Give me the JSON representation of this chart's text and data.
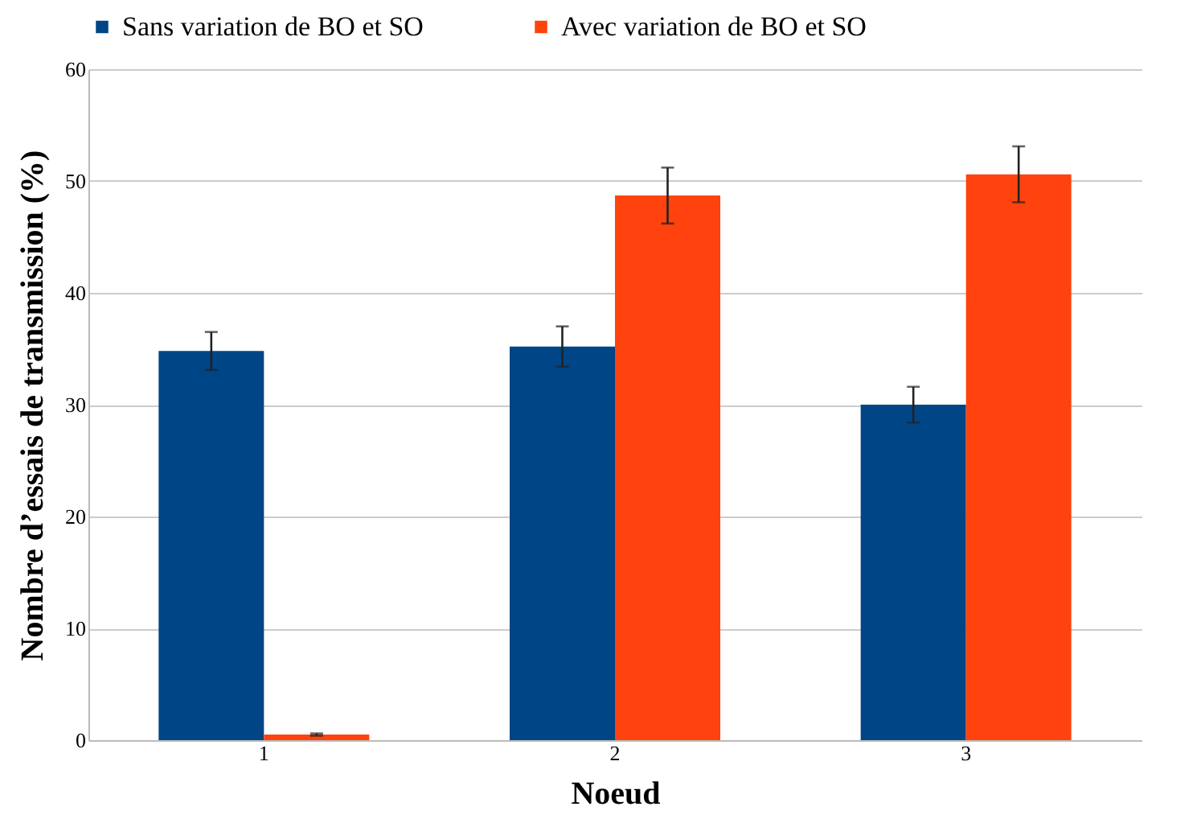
{
  "chart_data": {
    "type": "bar",
    "xlabel": "Noeud",
    "ylabel": "Nombre d’essais de transmission (%)",
    "categories": [
      "1",
      "2",
      "3"
    ],
    "series": [
      {
        "name": "Sans variation de  BO et SO",
        "color": "#004586",
        "values": [
          34.8,
          35.2,
          30.0
        ],
        "errors": [
          1.7,
          1.8,
          1.6
        ]
      },
      {
        "name": "Avec variation de BO et SO",
        "color": "#ff420e",
        "values": [
          0.5,
          48.7,
          50.6
        ],
        "errors": [
          0.1,
          2.5,
          2.5
        ]
      }
    ],
    "ylim": [
      0,
      60
    ],
    "yticks": [
      0,
      10,
      20,
      30,
      40,
      50,
      60
    ],
    "grid": "y",
    "legend": "top"
  }
}
